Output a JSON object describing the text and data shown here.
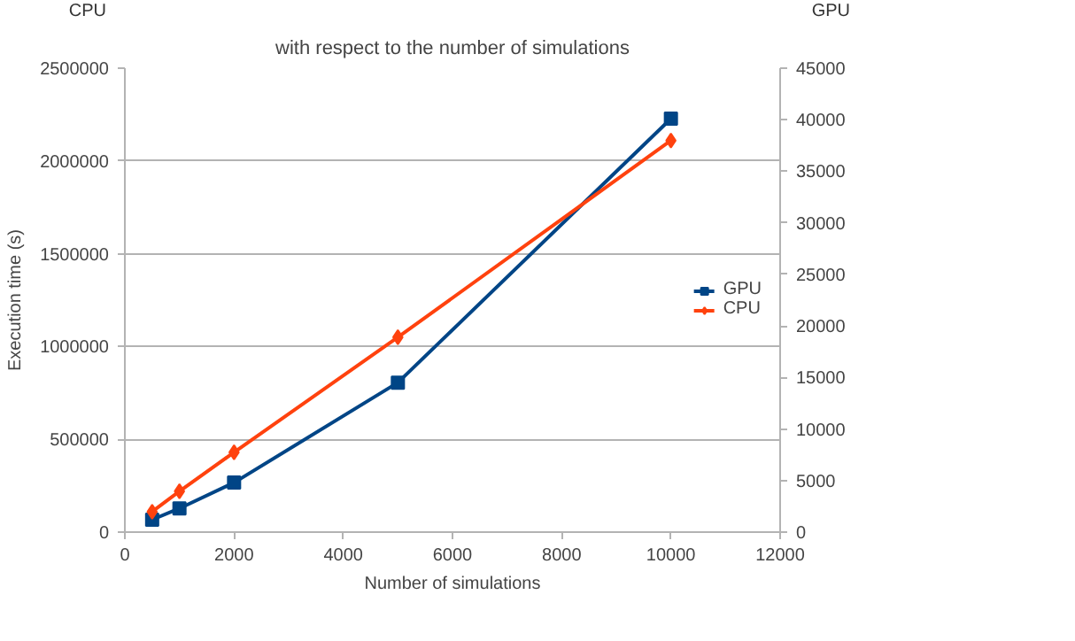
{
  "chart_data": {
    "type": "line",
    "title": "with respect to the number of simulations",
    "xlabel": "Number of simulations",
    "ylabel": "Execution time (s)",
    "annotations": [
      "CPU",
      "GPU"
    ],
    "x": [
      500,
      1000,
      2000,
      5000,
      10000
    ],
    "series": [
      {
        "name": "GPU",
        "color": "#004586",
        "axis": "y2",
        "marker": "square",
        "values": [
          1200,
          2300,
          4800,
          14500,
          40100
        ]
      },
      {
        "name": "CPU",
        "color": "#ff420e",
        "axis": "y",
        "marker": "diamond",
        "values": [
          110000,
          220000,
          430000,
          1050000,
          2110000
        ]
      }
    ],
    "xlim": [
      0,
      12000
    ],
    "xticks": [
      0,
      2000,
      4000,
      6000,
      8000,
      10000,
      12000
    ],
    "ylim": [
      0,
      2500000
    ],
    "yticks": [
      0,
      500000,
      1000000,
      1500000,
      2000000,
      2500000
    ],
    "y2lim": [
      0,
      45000
    ],
    "y2ticks": [
      0,
      5000,
      10000,
      15000,
      20000,
      25000,
      30000,
      35000,
      40000,
      45000
    ],
    "grid": "y",
    "legend": "right",
    "line_style": "solid"
  }
}
